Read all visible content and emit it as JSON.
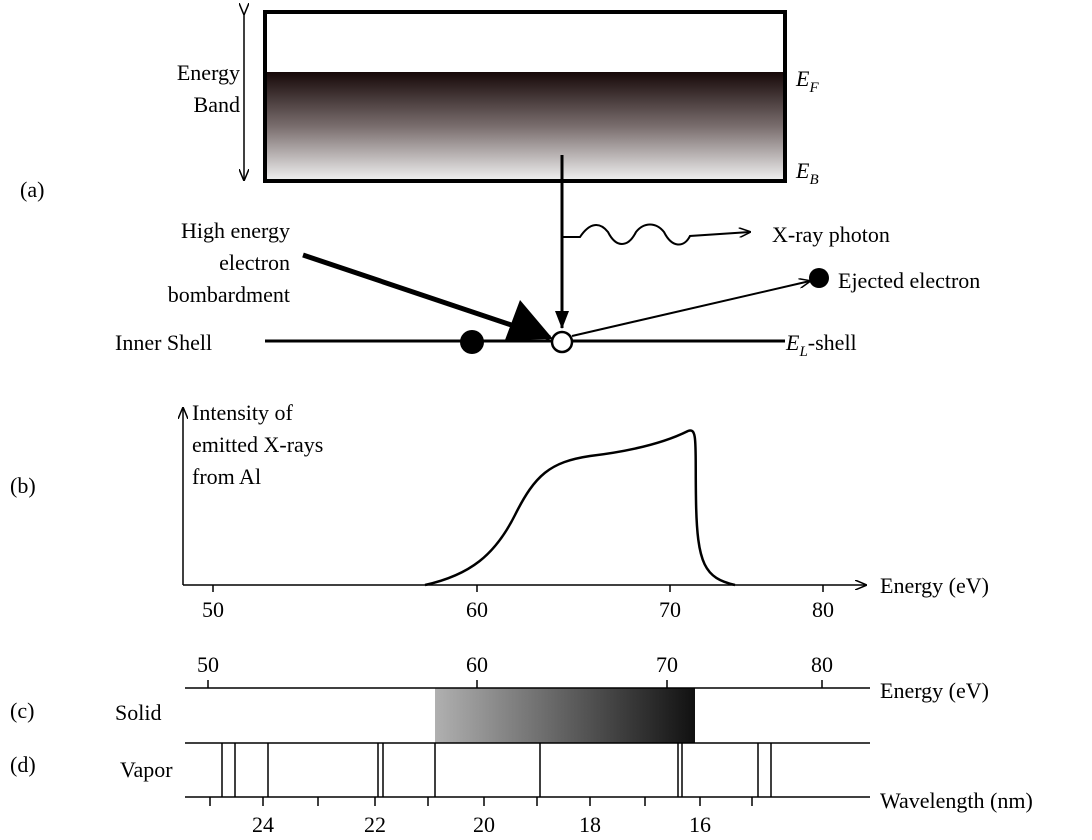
{
  "labels": {
    "a": "(a)",
    "b": "(b)",
    "c": "(c)",
    "d": "(d)"
  },
  "band": {
    "lines": [
      "Energy",
      "Band"
    ],
    "ef": {
      "main": "E",
      "sub": "F"
    },
    "eb": {
      "main": "E",
      "sub": "B"
    }
  },
  "bombardment": [
    "High energy",
    "electron",
    "bombardment"
  ],
  "xray": "X-ray photon",
  "ejected": "Ejected electron",
  "inner_shell": "Inner Shell",
  "el_shell": {
    "main": "E",
    "sub": "L",
    "suffix": "-shell"
  },
  "intensity": [
    "Intensity of",
    "emitted X-rays",
    "from Al"
  ],
  "b_axis": {
    "label": "Energy (eV)",
    "ticks": [
      50,
      60,
      70,
      80
    ]
  },
  "c_axis": {
    "label": "Energy (eV)",
    "ticks": [
      50,
      60,
      70,
      80
    ]
  },
  "d_axis": {
    "label": "Wavelength (nm)",
    "ticks": [
      24,
      22,
      20,
      18,
      16
    ]
  },
  "solid": "Solid",
  "vapor": "Vapor"
}
